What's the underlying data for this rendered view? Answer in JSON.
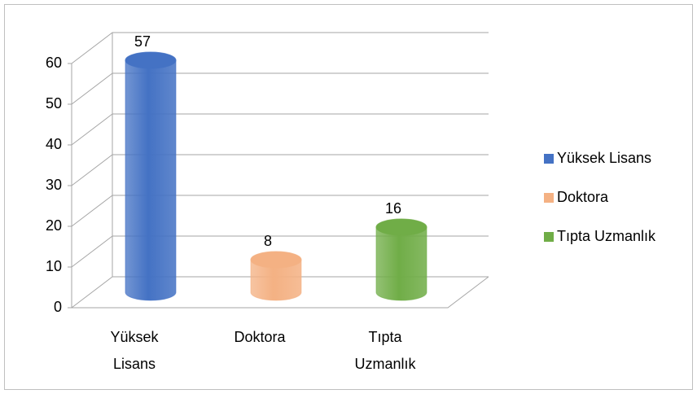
{
  "chart_data": {
    "type": "bar3d",
    "categories": [
      "Yüksek Lisans",
      "Doktora",
      "Tıpta Uzmanlık"
    ],
    "values": [
      57,
      8,
      16
    ],
    "colors": [
      "#4472c4",
      "#f4b183",
      "#70ad47"
    ],
    "ylim": [
      0,
      60
    ],
    "yticks": [
      0,
      10,
      20,
      30,
      40,
      50,
      60
    ],
    "grid": true,
    "legend": "right"
  }
}
